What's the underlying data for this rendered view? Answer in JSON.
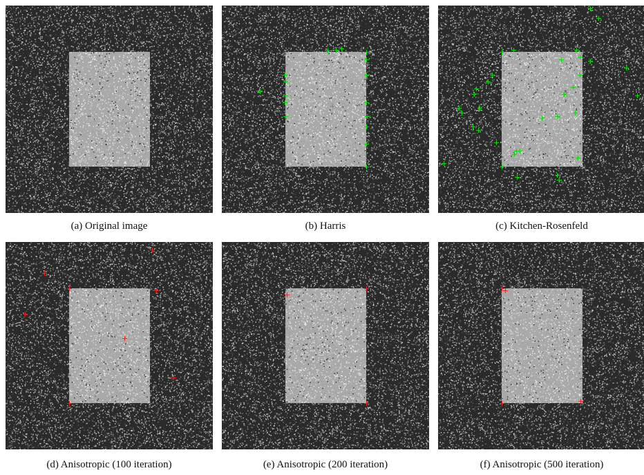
{
  "figure": {
    "panels": [
      {
        "id": "a",
        "caption": "(a) Original image",
        "marker_color": "#00e000",
        "corner_count": 0
      },
      {
        "id": "b",
        "caption": "(b) Harris",
        "marker_color": "#00e000",
        "corner_count": 24
      },
      {
        "id": "c",
        "caption": "(c) Kitchen-Rosenfeld",
        "marker_color": "#00e000",
        "corner_count": 38
      },
      {
        "id": "d",
        "caption": "(d) Anisotropic (100 iteration)",
        "marker_color": "#ff1a1a",
        "corner_count": 10
      },
      {
        "id": "e",
        "caption": "(e) Anisotropic (200 iteration)",
        "marker_color": "#ff1a1a",
        "corner_count": 5
      },
      {
        "id": "f",
        "caption": "(f) Anisotropic (500 iteration)",
        "marker_color": "#ff1a1a",
        "corner_count": 6
      }
    ]
  }
}
